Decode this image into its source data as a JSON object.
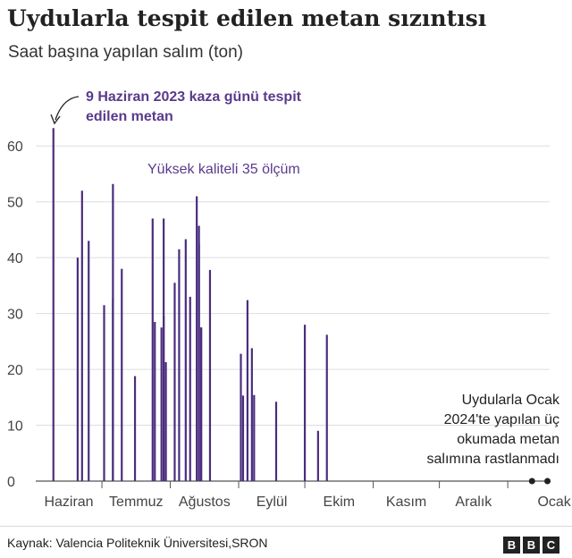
{
  "header": {
    "title": "Uydularla tespit edilen metan sızıntısı",
    "subtitle": "Saat başına yapılan salım (ton)"
  },
  "annotations": {
    "accident_line1": "9 Haziran 2023 kaza günü tespit",
    "accident_line2": "edilen metan",
    "quality": "Yüksek kaliteli 35 ölçüm",
    "jan_line1": "Uydularla Ocak",
    "jan_line2": "2024'te yapılan üç",
    "jan_line3": "okumada metan",
    "jan_line4": "salımına rastlanmadı"
  },
  "footer": {
    "source": "Kaynak: Valencia Politeknik Üniversitesi,SRON",
    "logo_letters": [
      "B",
      "B",
      "C"
    ]
  },
  "colors": {
    "bar": "#4a2d7e",
    "text": "#222222",
    "grid": "#dddddd",
    "annotation": "#5a3a8c"
  },
  "chart_data": {
    "type": "bar",
    "title": "Uydularla tespit edilen metan sızıntısı",
    "subtitle": "Saat başına yapılan salım (ton)",
    "x_type": "date",
    "x_ticks": [
      "Haziran",
      "Temmuz",
      "Ağustos",
      "Eylül",
      "Ekim",
      "Kasım",
      "Aralık",
      "Ocak"
    ],
    "xlim": [
      "2023-06-01",
      "2024-01-20"
    ],
    "ylim": [
      0,
      65
    ],
    "y_ticks": [
      0,
      10,
      20,
      30,
      40,
      50,
      60
    ],
    "grid": true,
    "series": [
      {
        "x": [
          "2023-06-09",
          "2023-06-20",
          "2023-06-22",
          "2023-06-25",
          "2023-07-02",
          "2023-07-06",
          "2023-07-06",
          "2023-07-10",
          "2023-07-16",
          "2023-07-24",
          "2023-07-25",
          "2023-07-28",
          "2023-07-29",
          "2023-07-29",
          "2023-07-30",
          "2023-08-03",
          "2023-08-05",
          "2023-08-08",
          "2023-08-10",
          "2023-08-13",
          "2023-08-14",
          "2023-08-14",
          "2023-08-15",
          "2023-08-15",
          "2023-08-19",
          "2023-09-02",
          "2023-09-03",
          "2023-09-05",
          "2023-09-07",
          "2023-09-08",
          "2023-09-18",
          "2023-10-01",
          "2023-10-07",
          "2023-10-11",
          "2023-12-22",
          "2024-01-02"
        ],
        "values": [
          63.2,
          40.0,
          52.0,
          43.0,
          31.5,
          53.2,
          32.8,
          38.0,
          18.8,
          47.0,
          28.5,
          27.5,
          47.0,
          29.5,
          21.3,
          35.5,
          41.5,
          43.3,
          33.0,
          51.0,
          42.5,
          45.7,
          27.5,
          27.5,
          37.8,
          22.8,
          15.3,
          32.4,
          23.8,
          15.4,
          14.2,
          28.0,
          9.0,
          26.2,
          0,
          0
        ]
      }
    ],
    "zero_readings": [
      "2024-01-12",
      "2024-01-19"
    ]
  }
}
